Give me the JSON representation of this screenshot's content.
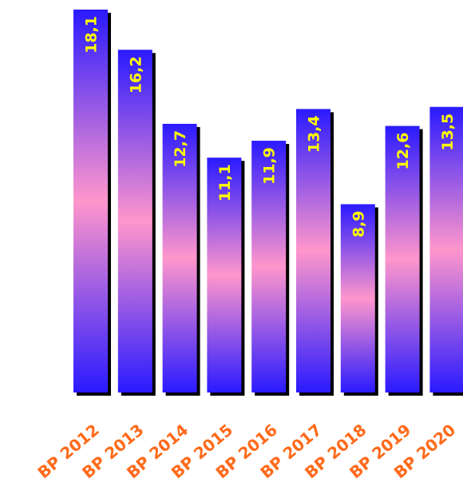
{
  "chart_data": {
    "type": "bar",
    "categories": [
      "BP 2012",
      "BP 2013",
      "BP 2014",
      "BP 2015",
      "BP 2016",
      "BP 2017",
      "BP 2018",
      "BP 2019",
      "BP 2020"
    ],
    "values": [
      18.1,
      16.2,
      12.7,
      11.1,
      11.9,
      13.4,
      8.9,
      12.6,
      13.5
    ],
    "value_labels": [
      "18,1",
      "16,2",
      "12,7",
      "11,1",
      "11,9",
      "13,4",
      "8,9",
      "12,6",
      "13,5"
    ],
    "title": "",
    "xlabel": "",
    "ylabel": "",
    "ylim": [
      0,
      18.1
    ],
    "grid": false,
    "legend": "none",
    "colors": {
      "bar_edge": "#2a1aff",
      "bar_middle": "#ff96cc",
      "bar_shadow": "#000000",
      "value_label": "#ffff00",
      "tick_label": "#ff6a1a"
    }
  }
}
